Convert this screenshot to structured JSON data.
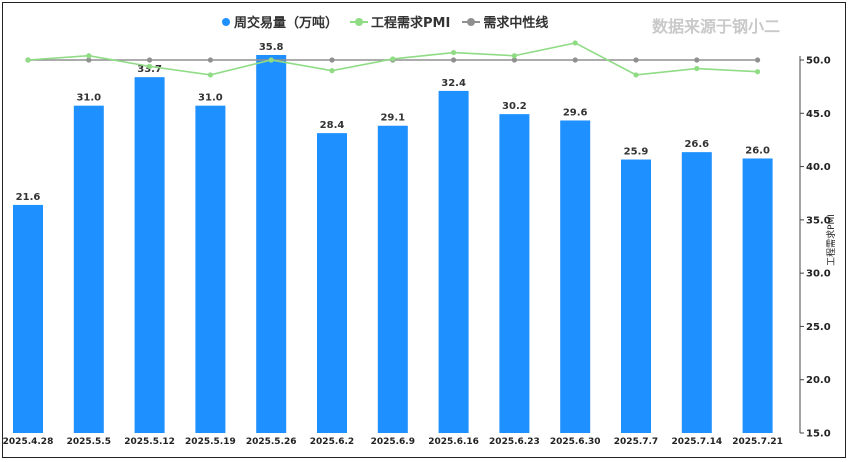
{
  "source_label": "数据来源于钢小二",
  "legend": [
    {
      "label": "周交易量（万吨）",
      "kind": "bar",
      "color": "#1e90ff"
    },
    {
      "label": "工程需求PMI",
      "kind": "line",
      "color": "#8fdc85"
    },
    {
      "label": "需求中性线",
      "kind": "line",
      "color": "#909090"
    }
  ],
  "chart_data": {
    "type": "bar",
    "categories": [
      "2025.4.28",
      "2025.5.5",
      "2025.5.12",
      "2025.5.19",
      "2025.5.26",
      "2025.6.2",
      "2025.6.9",
      "2025.6.16",
      "2025.6.23",
      "2025.6.30",
      "2025.7.7",
      "2025.7.14",
      "2025.7.21"
    ],
    "series": [
      {
        "name": "周交易量（万吨）",
        "type": "bar",
        "color": "#1e90ff",
        "values": [
          21.6,
          31.0,
          33.7,
          31.0,
          35.8,
          28.4,
          29.1,
          32.4,
          30.2,
          29.6,
          25.9,
          26.6,
          26.0
        ]
      },
      {
        "name": "工程需求PMI",
        "type": "line",
        "axis": "right",
        "color": "#8fdc85",
        "values": [
          50.0,
          50.4,
          49.4,
          48.6,
          50.0,
          49.0,
          50.1,
          50.7,
          50.4,
          51.6,
          48.6,
          49.2,
          48.9
        ]
      },
      {
        "name": "需求中性线",
        "type": "line",
        "axis": "right",
        "color": "#909090",
        "values": [
          50,
          50,
          50,
          50,
          50,
          50,
          50,
          50,
          50,
          50,
          50,
          50,
          50
        ]
      }
    ],
    "y2label": "工程需求PMI",
    "y2lim": [
      15,
      50
    ],
    "y2ticks": [
      "15.0",
      "20.0",
      "25.0",
      "30.0",
      "35.0",
      "40.0",
      "45.0",
      "50.0"
    ],
    "grid": false
  }
}
